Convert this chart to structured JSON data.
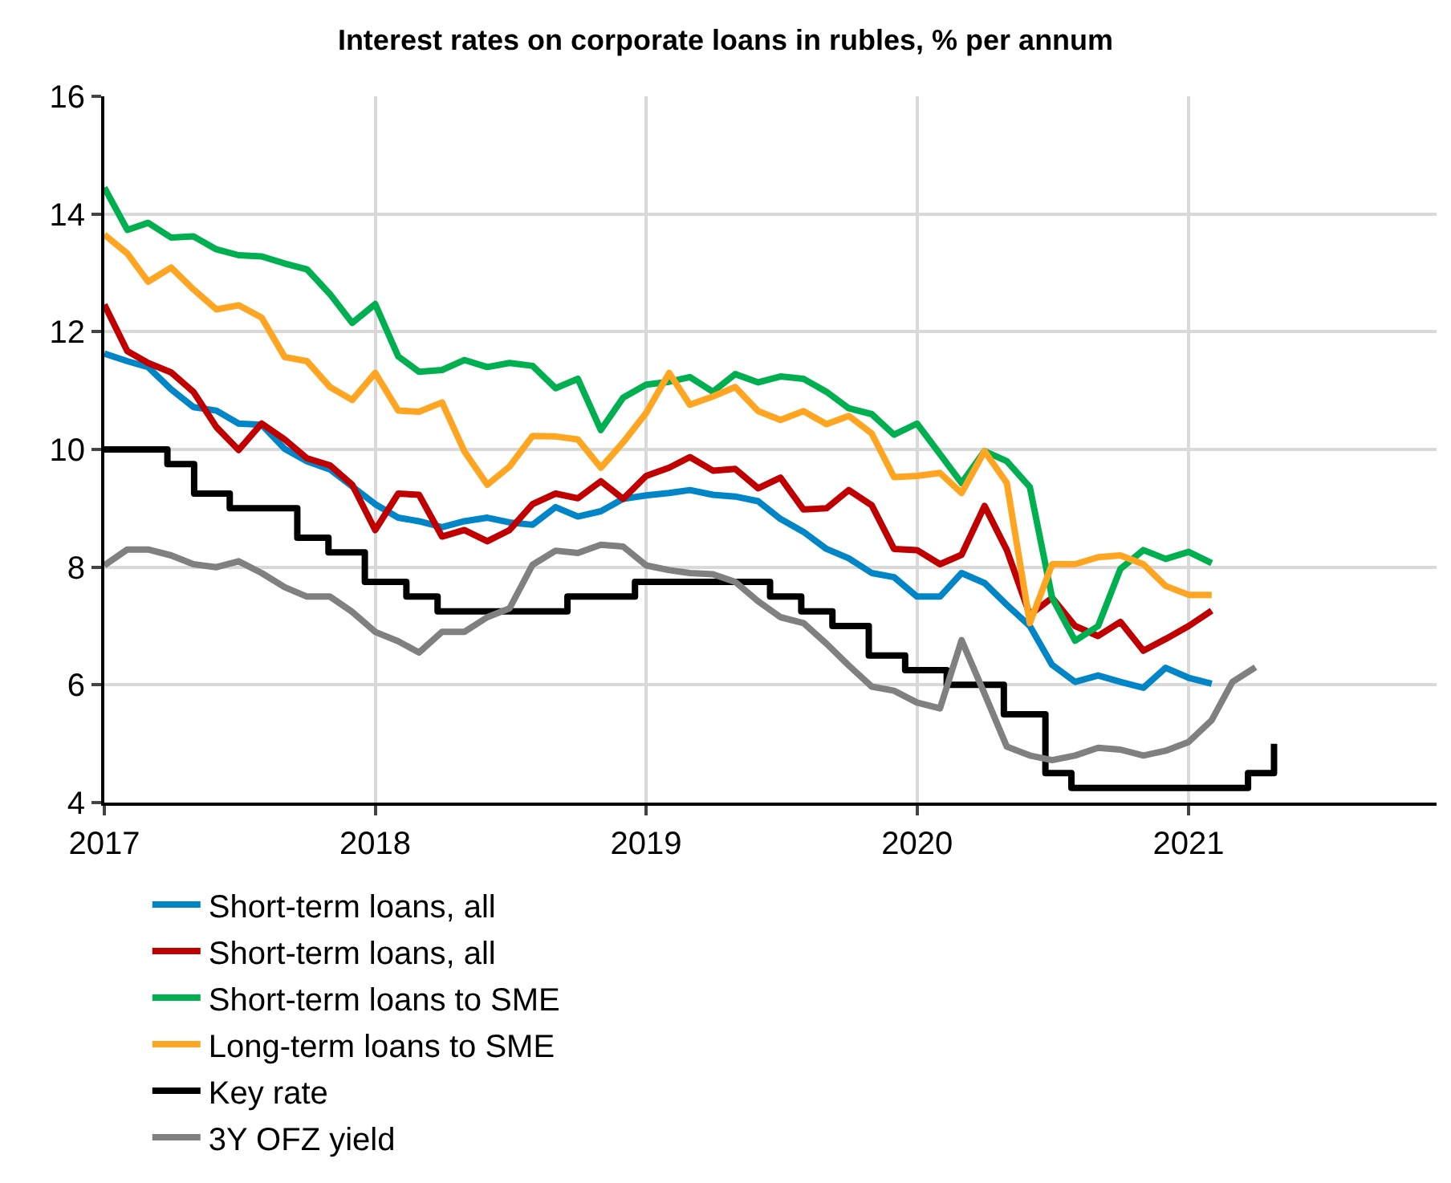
{
  "chart_data": {
    "type": "line",
    "title": "Interest rates on corporate loans in rubles, % per annum",
    "x": [
      "2017-01",
      "2017-02",
      "2017-03",
      "2017-04",
      "2017-05",
      "2017-06",
      "2017-07",
      "2017-08",
      "2017-09",
      "2017-10",
      "2017-11",
      "2017-12",
      "2018-01",
      "2018-02",
      "2018-03",
      "2018-04",
      "2018-05",
      "2018-06",
      "2018-07",
      "2018-08",
      "2018-09",
      "2018-10",
      "2018-11",
      "2018-12",
      "2019-01",
      "2019-02",
      "2019-03",
      "2019-04",
      "2019-05",
      "2019-06",
      "2019-07",
      "2019-08",
      "2019-09",
      "2019-10",
      "2019-11",
      "2019-12",
      "2020-01",
      "2020-02",
      "2020-03",
      "2020-04",
      "2020-05",
      "2020-06",
      "2020-07",
      "2020-08",
      "2020-09",
      "2020-10",
      "2020-11",
      "2020-12",
      "2021-01",
      "2021-02"
    ],
    "series": [
      {
        "name": "Short-term loans, all",
        "color": "#0085c7",
        "values": [
          11.63,
          11.5,
          11.4,
          11.02,
          10.72,
          10.66,
          10.44,
          10.42,
          10.01,
          9.8,
          9.66,
          9.37,
          9.07,
          8.84,
          8.78,
          8.68,
          8.78,
          8.84,
          8.76,
          8.72,
          9.02,
          8.86,
          8.95,
          9.16,
          9.22,
          9.26,
          9.31,
          9.23,
          9.2,
          9.12,
          8.82,
          8.6,
          8.31,
          8.15,
          7.9,
          7.83,
          7.5,
          7.5,
          7.9,
          7.73,
          7.36,
          7.0,
          6.34,
          6.05,
          6.16,
          6.05,
          5.95,
          6.29,
          6.12,
          6.02
        ]
      },
      {
        "name": "Short-term loans, all",
        "color": "#c00000",
        "values": [
          12.46,
          11.67,
          11.47,
          11.31,
          10.98,
          10.38,
          9.99,
          10.44,
          10.17,
          9.85,
          9.73,
          9.4,
          8.63,
          9.25,
          9.23,
          8.52,
          8.63,
          8.44,
          8.63,
          9.07,
          9.25,
          9.17,
          9.46,
          9.16,
          9.55,
          9.69,
          9.87,
          9.64,
          9.67,
          9.34,
          9.52,
          8.98,
          9.0,
          9.31,
          9.05,
          8.31,
          8.29,
          8.05,
          8.21,
          9.04,
          8.29,
          7.19,
          7.48,
          7.0,
          6.83,
          7.07,
          6.58,
          6.78,
          7.0,
          7.26
        ]
      },
      {
        "name": "Short-term loans to SME",
        "color": "#00b050",
        "values": [
          14.45,
          13.73,
          13.85,
          13.6,
          13.62,
          13.4,
          13.3,
          13.28,
          13.16,
          13.06,
          12.64,
          12.15,
          12.47,
          11.58,
          11.32,
          11.35,
          11.52,
          11.4,
          11.47,
          11.42,
          11.04,
          11.2,
          10.33,
          10.88,
          11.1,
          11.15,
          11.23,
          10.98,
          11.28,
          11.14,
          11.24,
          11.2,
          10.98,
          10.7,
          10.6,
          10.25,
          10.44,
          9.92,
          9.43,
          9.97,
          9.8,
          9.36,
          7.48,
          6.75,
          7.0,
          7.97,
          8.29,
          8.14,
          8.26,
          8.07
        ]
      },
      {
        "name": "Long-term loans to SME",
        "color": "#ffa521",
        "values": [
          13.65,
          13.33,
          12.85,
          13.09,
          12.72,
          12.38,
          12.45,
          12.24,
          11.57,
          11.5,
          11.06,
          10.84,
          11.3,
          10.66,
          10.64,
          10.8,
          9.97,
          9.4,
          9.71,
          10.23,
          10.22,
          10.17,
          9.69,
          10.12,
          10.62,
          11.3,
          10.76,
          10.9,
          11.06,
          10.65,
          10.5,
          10.65,
          10.43,
          10.57,
          10.27,
          9.53,
          9.55,
          9.6,
          9.26,
          9.97,
          9.43,
          7.05,
          8.05,
          8.05,
          8.17,
          8.2,
          8.05,
          7.68,
          7.53,
          7.53
        ]
      },
      {
        "name": "Key rate",
        "type": "step",
        "color": "#000000",
        "x": [
          "2017-01-01",
          "2017-03-27",
          "2017-05-02",
          "2017-06-19",
          "2017-09-18",
          "2017-10-30",
          "2017-12-18",
          "2018-02-12",
          "2018-03-26",
          "2018-09-17",
          "2018-12-17",
          "2019-06-17",
          "2019-07-29",
          "2019-09-09",
          "2019-10-28",
          "2019-12-16",
          "2020-02-10",
          "2020-04-27",
          "2020-06-22",
          "2020-07-27",
          "2021-03-22",
          "2021-04-26"
        ],
        "values": [
          10.0,
          9.75,
          9.25,
          9.0,
          8.5,
          8.25,
          7.75,
          7.5,
          7.25,
          7.5,
          7.75,
          7.5,
          7.25,
          7.0,
          6.5,
          6.25,
          6.0,
          5.5,
          4.5,
          4.25,
          4.5,
          5.0
        ]
      },
      {
        "name": "3Y OFZ yield",
        "color": "#808080",
        "x": [
          "2017-01",
          "2017-02",
          "2017-03",
          "2017-04",
          "2017-05",
          "2017-06",
          "2017-07",
          "2017-08",
          "2017-09",
          "2017-10",
          "2017-11",
          "2017-12",
          "2018-01",
          "2018-02",
          "2018-03",
          "2018-04",
          "2018-05",
          "2018-06",
          "2018-07",
          "2018-08",
          "2018-09",
          "2018-10",
          "2018-11",
          "2018-12",
          "2019-01",
          "2019-02",
          "2019-03",
          "2019-04",
          "2019-05",
          "2019-06",
          "2019-07",
          "2019-08",
          "2019-09",
          "2019-10",
          "2019-11",
          "2019-12",
          "2020-01",
          "2020-02",
          "2020-03",
          "2020-04",
          "2020-05",
          "2020-06",
          "2020-07",
          "2020-08",
          "2020-09",
          "2020-10",
          "2020-11",
          "2020-12",
          "2021-01",
          "2021-02",
          "2021-03",
          "2021-04"
        ],
        "values": [
          8.03,
          8.3,
          8.3,
          8.2,
          8.05,
          8.0,
          8.1,
          7.9,
          7.66,
          7.5,
          7.5,
          7.24,
          6.9,
          6.74,
          6.55,
          6.9,
          6.9,
          7.15,
          7.3,
          8.04,
          8.28,
          8.24,
          8.38,
          8.35,
          8.03,
          7.95,
          7.9,
          7.88,
          7.75,
          7.42,
          7.15,
          7.05,
          6.7,
          6.33,
          5.97,
          5.9,
          5.7,
          5.6,
          6.76,
          5.85,
          4.95,
          4.8,
          4.72,
          4.8,
          4.93,
          4.9,
          4.8,
          4.88,
          5.03,
          5.4,
          6.05,
          6.3
        ]
      }
    ],
    "xlim": [
      "2017-01-01",
      "2021-12-01"
    ],
    "xticks": [
      {
        "value": "2017-01-01",
        "label": "2017"
      },
      {
        "value": "2018-01-01",
        "label": "2018"
      },
      {
        "value": "2019-01-01",
        "label": "2019"
      },
      {
        "value": "2020-01-01",
        "label": "2020"
      },
      {
        "value": "2021-01-01",
        "label": "2021"
      }
    ],
    "ylim": [
      4,
      16
    ],
    "yticks": [
      4,
      6,
      8,
      10,
      12,
      14,
      16
    ],
    "grid": true,
    "legend": "bottom",
    "line_style": "solid",
    "marker": "none"
  }
}
